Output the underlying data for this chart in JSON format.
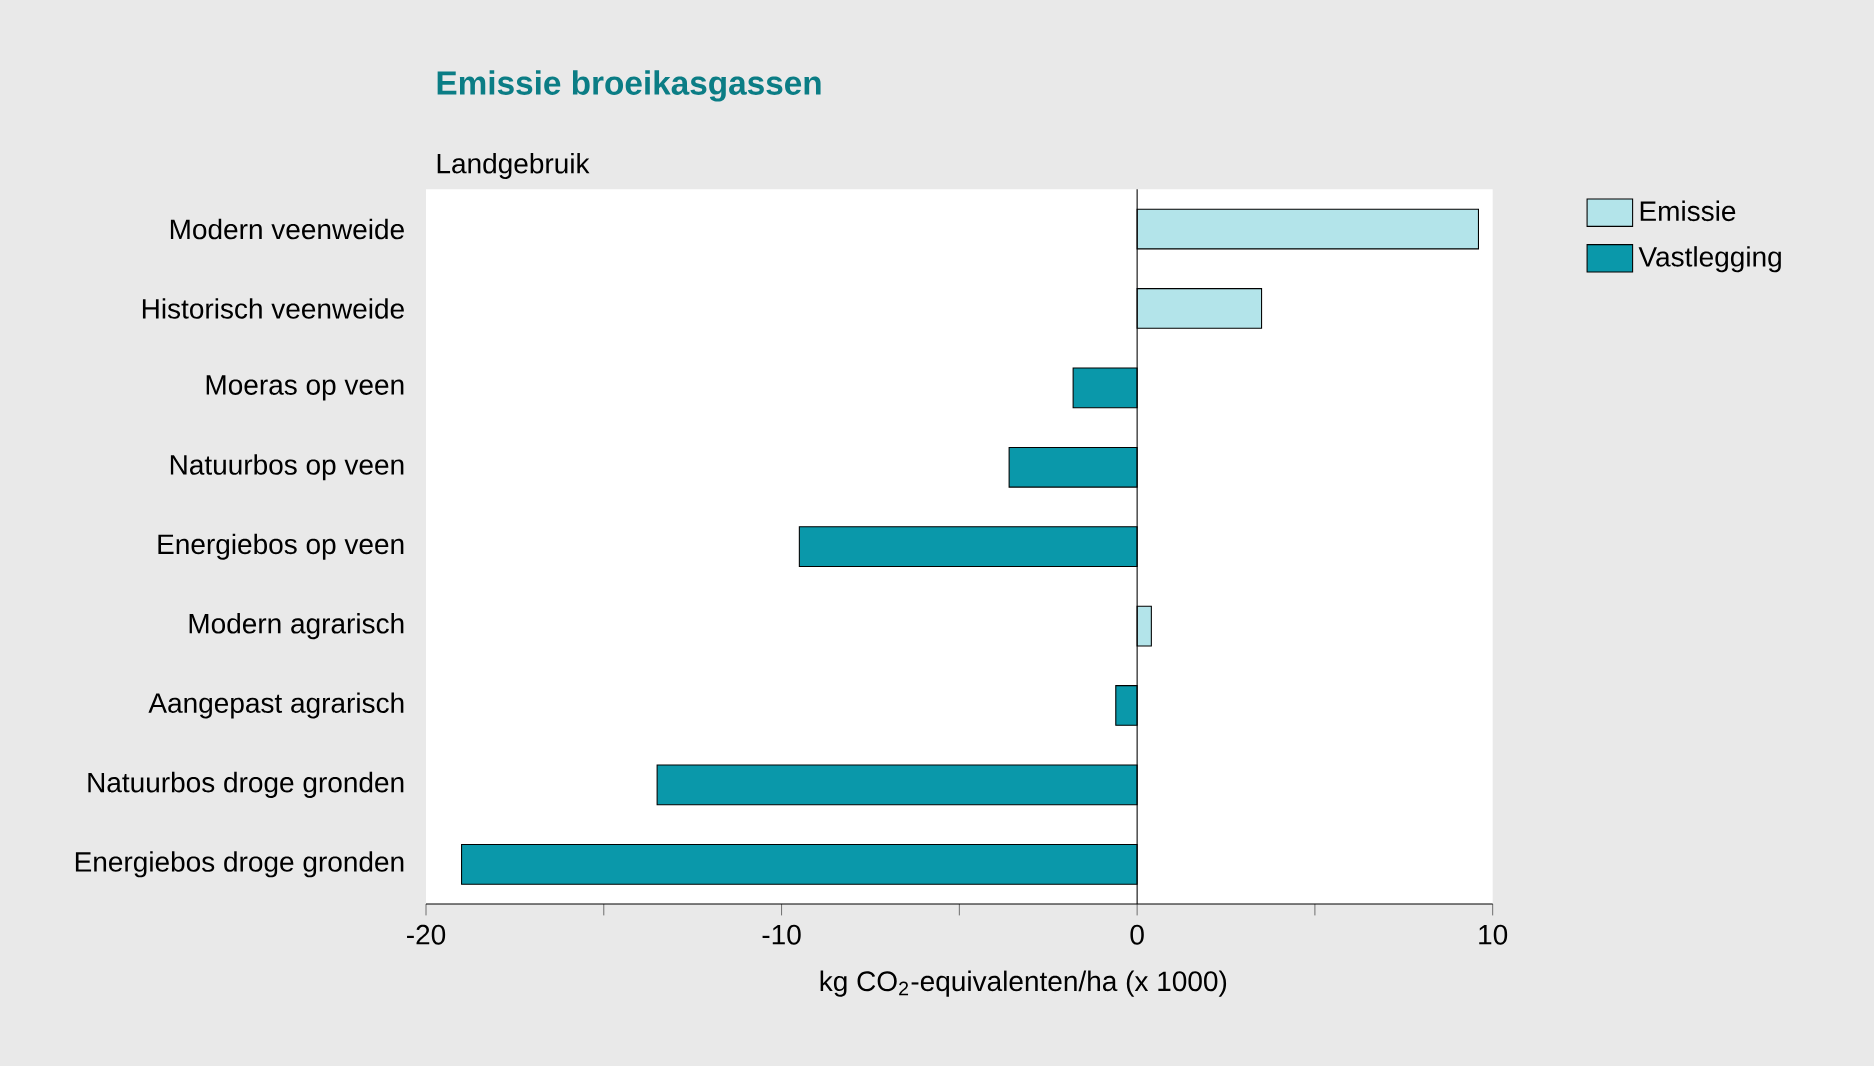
{
  "chart_data": {
    "type": "bar",
    "orientation": "horizontal",
    "stacked": true,
    "title": "Emissie broeikasgassen",
    "annotations": [
      "Landgebruik"
    ],
    "xlabel": "kg CO$_{2}$-equivalenten/ha (x 1000)",
    "categories": [
      "Modern veenweide",
      "Historisch veenweide",
      "Moeras op veen",
      "Natuurbos op veen",
      "Energiebos op veen",
      "Modern agrarisch",
      "Aangepast agrarisch",
      "Natuurbos droge gronden",
      "Energiebos droge gronden"
    ],
    "series": [
      {
        "name": "Emissie",
        "color": "#b3e4ea",
        "values": [
          9.6,
          3.5,
          null,
          null,
          null,
          0.4,
          null,
          null,
          null
        ]
      },
      {
        "name": "Vastlegging",
        "color": "#0a98aa",
        "values": [
          null,
          null,
          -1.8,
          -3.6,
          -9.5,
          null,
          -0.6,
          -13.5,
          -19.0
        ]
      }
    ],
    "xlim": [
      -20,
      10
    ],
    "xticks": [
      -20,
      {
        "value": -15,
        "label": null
      },
      -10,
      {
        "value": -5,
        "label": null
      },
      0,
      {
        "value": 5,
        "label": null
      },
      10
    ],
    "ref_lines": [
      {
        "axis": "x",
        "value": 0,
        "color": "#000000"
      }
    ],
    "grid": false,
    "legend": "top right"
  }
}
